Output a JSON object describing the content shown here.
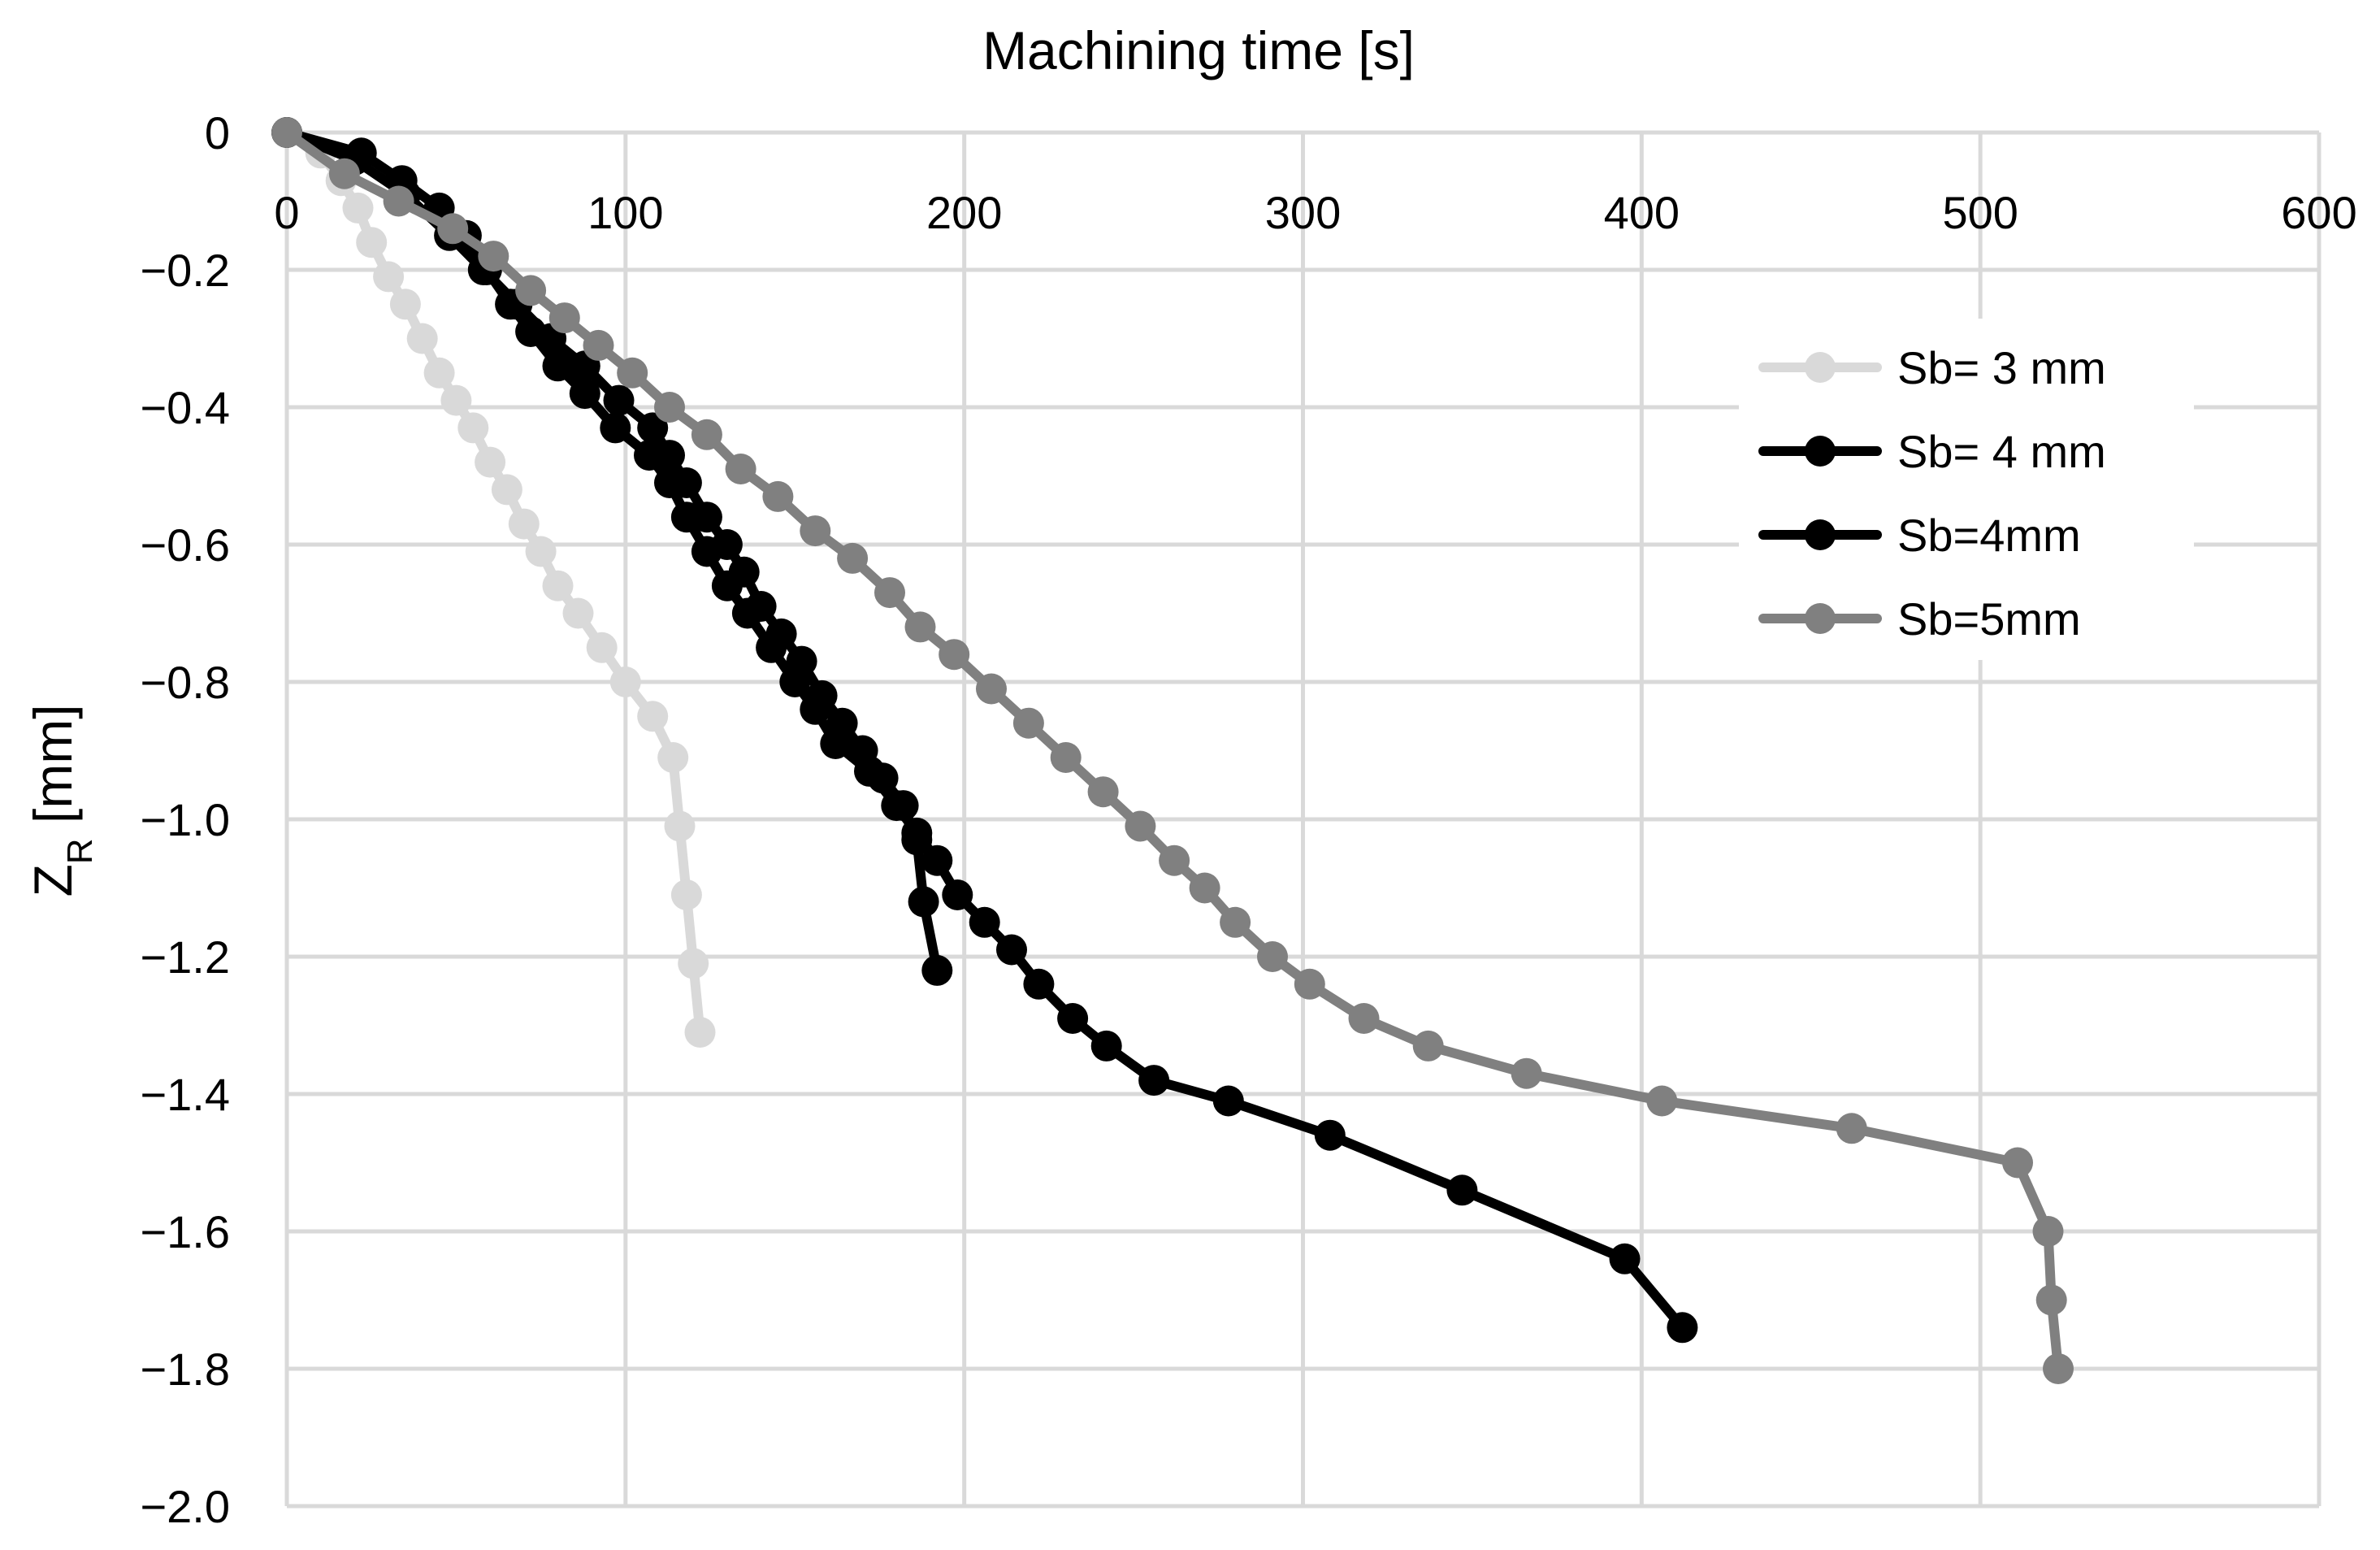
{
  "chart_data": {
    "type": "line",
    "title": "",
    "xlabel": "Machining time [s]",
    "ylabel_main": "Z",
    "ylabel_sub": "R",
    "ylabel_unit": " [mm]",
    "x_axis_position": "top",
    "xlim": [
      0,
      600
    ],
    "ylim": [
      -2.0,
      0
    ],
    "x_ticks": [
      0,
      100,
      200,
      300,
      400,
      500,
      600
    ],
    "x_tick_labels": [
      "0",
      "100",
      "200",
      "300",
      "400",
      "500",
      "600"
    ],
    "y_ticks": [
      0,
      -0.2,
      -0.4,
      -0.6,
      -0.8,
      -1.0,
      -1.2,
      -1.4,
      -1.6,
      -1.8,
      -2.0
    ],
    "y_tick_labels": [
      "0",
      "−0.2",
      "−0.4",
      "−0.6",
      "−0.8",
      "−1.0",
      "−1.2",
      "−1.4",
      "−1.6",
      "−1.8",
      "−2.0"
    ],
    "grid": true,
    "legend_position": "right",
    "series": [
      {
        "name": "Sb= 3 mm",
        "color": "#d9d9d9",
        "points": [
          [
            0,
            0
          ],
          [
            10,
            -0.03
          ],
          [
            16,
            -0.07
          ],
          [
            21,
            -0.11
          ],
          [
            25,
            -0.16
          ],
          [
            30,
            -0.21
          ],
          [
            35,
            -0.25
          ],
          [
            40,
            -0.3
          ],
          [
            45,
            -0.35
          ],
          [
            50,
            -0.39
          ],
          [
            55,
            -0.43
          ],
          [
            60,
            -0.48
          ],
          [
            65,
            -0.52
          ],
          [
            70,
            -0.57
          ],
          [
            75,
            -0.61
          ],
          [
            80,
            -0.66
          ],
          [
            86,
            -0.7
          ],
          [
            93,
            -0.75
          ],
          [
            100,
            -0.8
          ],
          [
            108,
            -0.85
          ],
          [
            114,
            -0.91
          ],
          [
            116,
            -1.01
          ],
          [
            118,
            -1.11
          ],
          [
            120,
            -1.21
          ],
          [
            122,
            -1.31
          ]
        ]
      },
      {
        "name": "Sb= 4 mm",
        "color": "#000000",
        "points": [
          [
            0,
            0
          ],
          [
            22,
            -0.03
          ],
          [
            34,
            -0.07
          ],
          [
            45,
            -0.11
          ],
          [
            53,
            -0.15
          ],
          [
            59,
            -0.2
          ],
          [
            66,
            -0.25
          ],
          [
            72,
            -0.29
          ],
          [
            80,
            -0.34
          ],
          [
            88,
            -0.38
          ],
          [
            97,
            -0.43
          ],
          [
            107,
            -0.47
          ],
          [
            113,
            -0.51
          ],
          [
            118,
            -0.56
          ],
          [
            124,
            -0.61
          ],
          [
            130,
            -0.66
          ],
          [
            136,
            -0.7
          ],
          [
            143,
            -0.75
          ],
          [
            150,
            -0.8
          ],
          [
            156,
            -0.84
          ],
          [
            162,
            -0.89
          ],
          [
            172,
            -0.93
          ],
          [
            180,
            -0.98
          ],
          [
            186,
            -1.02
          ],
          [
            192,
            -1.06
          ],
          [
            198,
            -1.11
          ],
          [
            206,
            -1.15
          ],
          [
            214,
            -1.19
          ],
          [
            222,
            -1.24
          ],
          [
            232,
            -1.29
          ],
          [
            242,
            -1.33
          ],
          [
            256,
            -1.38
          ],
          [
            278,
            -1.41
          ],
          [
            308,
            -1.46
          ],
          [
            347,
            -1.54
          ],
          [
            395,
            -1.64
          ],
          [
            412,
            -1.74
          ]
        ]
      },
      {
        "name": "Sb=4mm",
        "color": "#000000",
        "points": [
          [
            0,
            0
          ],
          [
            20,
            -0.04
          ],
          [
            35,
            -0.09
          ],
          [
            48,
            -0.15
          ],
          [
            58,
            -0.2
          ],
          [
            68,
            -0.25
          ],
          [
            78,
            -0.3
          ],
          [
            88,
            -0.34
          ],
          [
            98,
            -0.39
          ],
          [
            108,
            -0.43
          ],
          [
            113,
            -0.47
          ],
          [
            118,
            -0.51
          ],
          [
            124,
            -0.56
          ],
          [
            130,
            -0.6
          ],
          [
            135,
            -0.64
          ],
          [
            140,
            -0.69
          ],
          [
            146,
            -0.73
          ],
          [
            152,
            -0.77
          ],
          [
            158,
            -0.82
          ],
          [
            164,
            -0.86
          ],
          [
            170,
            -0.9
          ],
          [
            176,
            -0.94
          ],
          [
            182,
            -0.98
          ],
          [
            186,
            -1.03
          ],
          [
            188,
            -1.12
          ],
          [
            192,
            -1.22
          ]
        ]
      },
      {
        "name": "Sb=5mm",
        "color": "#808080",
        "points": [
          [
            0,
            0
          ],
          [
            17,
            -0.06
          ],
          [
            33,
            -0.1
          ],
          [
            49,
            -0.14
          ],
          [
            61,
            -0.18
          ],
          [
            72,
            -0.23
          ],
          [
            82,
            -0.27
          ],
          [
            92,
            -0.31
          ],
          [
            102,
            -0.35
          ],
          [
            113,
            -0.4
          ],
          [
            124,
            -0.44
          ],
          [
            134,
            -0.49
          ],
          [
            145,
            -0.53
          ],
          [
            156,
            -0.58
          ],
          [
            167,
            -0.62
          ],
          [
            178,
            -0.67
          ],
          [
            187,
            -0.72
          ],
          [
            197,
            -0.76
          ],
          [
            208,
            -0.81
          ],
          [
            219,
            -0.86
          ],
          [
            230,
            -0.91
          ],
          [
            241,
            -0.96
          ],
          [
            252,
            -1.01
          ],
          [
            262,
            -1.06
          ],
          [
            271,
            -1.1
          ],
          [
            280,
            -1.15
          ],
          [
            291,
            -1.2
          ],
          [
            302,
            -1.24
          ],
          [
            318,
            -1.29
          ],
          [
            337,
            -1.33
          ],
          [
            366,
            -1.37
          ],
          [
            406,
            -1.41
          ],
          [
            462,
            -1.45
          ],
          [
            511,
            -1.5
          ],
          [
            520,
            -1.6
          ],
          [
            521,
            -1.7
          ],
          [
            523,
            -1.8
          ]
        ]
      }
    ]
  }
}
